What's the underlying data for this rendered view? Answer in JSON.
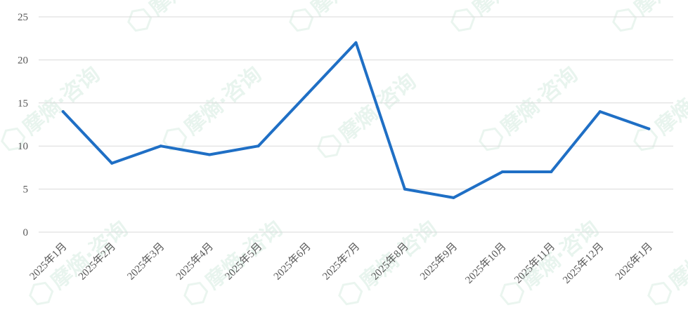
{
  "chart_data": {
    "type": "line",
    "categories": [
      "2025年1月",
      "2025年2月",
      "2025年3月",
      "2025年4月",
      "2025年5月",
      "2025年6月",
      "2025年7月",
      "2025年8月",
      "2025年9月",
      "2025年10月",
      "2025年11月",
      "2025年12月",
      "2026年1月"
    ],
    "values": [
      14,
      8,
      10,
      9,
      10,
      16,
      22,
      5,
      4,
      7,
      7,
      14,
      12
    ],
    "ylim": [
      0,
      25
    ],
    "yticks": [
      "0",
      "5",
      "10",
      "15",
      "20",
      "25"
    ],
    "grid": true,
    "line_color": "#1f6fc5",
    "watermark_text": "摩熵·咨询"
  }
}
